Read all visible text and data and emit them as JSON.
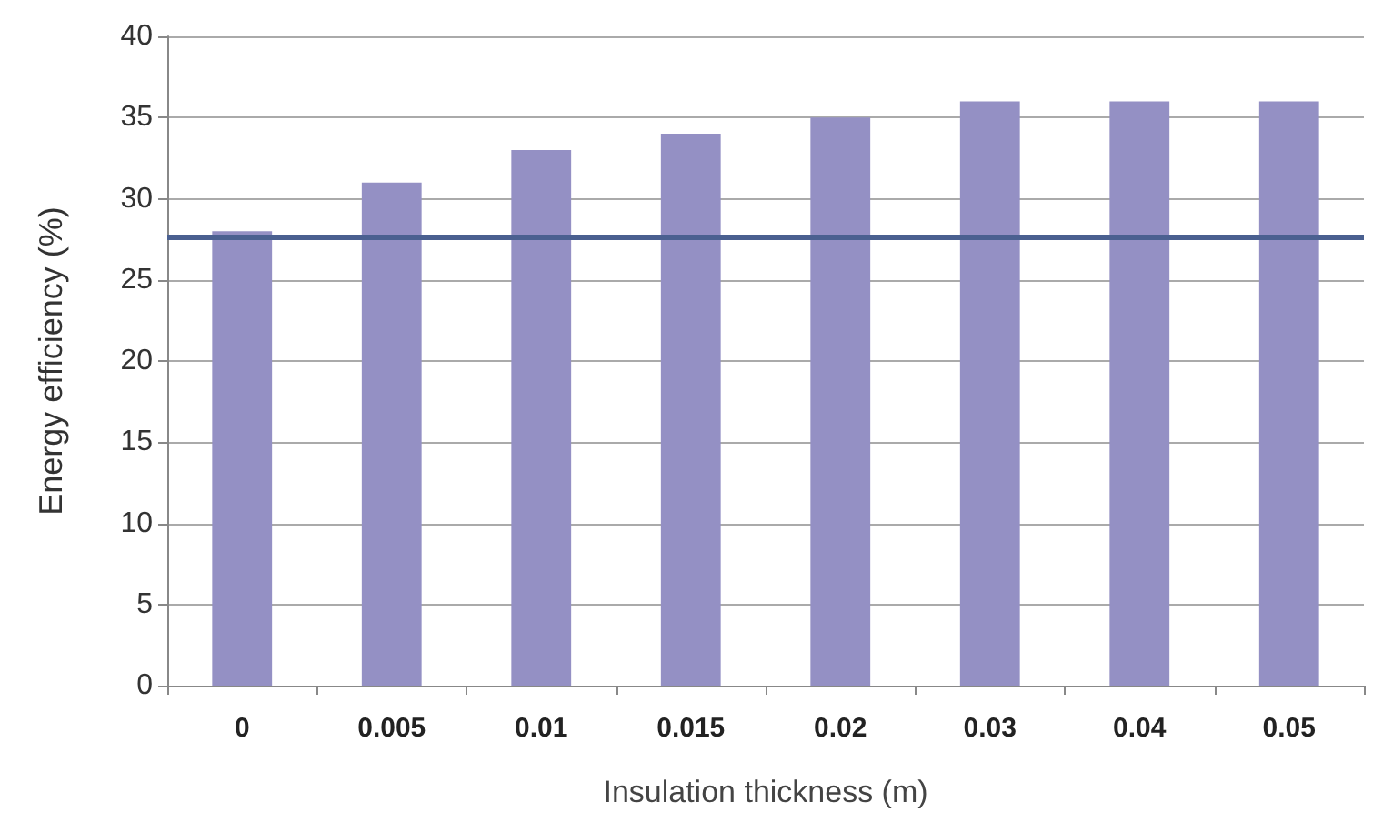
{
  "chart_data": {
    "type": "bar",
    "xlabel": "Insulation thickness (m)",
    "ylabel": "Energy efficiency (%)",
    "categories": [
      "0",
      "0.005",
      "0.01",
      "0.015",
      "0.02",
      "0.03",
      "0.04",
      "0.05"
    ],
    "values": [
      28,
      31,
      33,
      34,
      35,
      36,
      36,
      36
    ],
    "color": "#9490c4",
    "ylim": [
      0,
      40
    ],
    "yticks": [
      0,
      5,
      10,
      15,
      20,
      25,
      30,
      35,
      40
    ],
    "grid": "y",
    "ref_lines": [
      {
        "axis": "y",
        "value": 27.7,
        "color": "#4a6090",
        "line_style": "solid"
      }
    ]
  }
}
